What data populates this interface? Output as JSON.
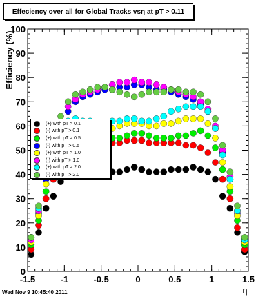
{
  "title": "Effeciency over all for Global Tracks vsη at pT > 0.11",
  "timestamp": "Wed Nov  9 10:45:40 2011",
  "chart_data": {
    "type": "scatter",
    "xlabel": "η",
    "ylabel": "Efficiency (%)",
    "xlim": [
      -1.5,
      1.5
    ],
    "ylim": [
      0,
      100
    ],
    "xticks": [
      "-1.5",
      "-1",
      "-0.5",
      "0",
      "0.5",
      "1",
      "1.5"
    ],
    "yticks": [
      "0",
      "10",
      "20",
      "30",
      "40",
      "50",
      "60",
      "70",
      "80",
      "90",
      "100"
    ],
    "grid": false,
    "legend_position": "middle-left",
    "series": [
      {
        "name": "(+) with pT > 0.1",
        "color": "#000000",
        "x": [
          -1.45,
          -1.35,
          -1.25,
          -1.15,
          -1.05,
          -0.95,
          -0.85,
          -0.75,
          -0.65,
          -0.55,
          -0.45,
          -0.35,
          -0.25,
          -0.15,
          -0.05,
          0.05,
          0.15,
          0.25,
          0.35,
          0.45,
          0.55,
          0.65,
          0.75,
          0.85,
          0.95,
          1.05,
          1.15,
          1.25,
          1.35,
          1.45
        ],
        "y": [
          7,
          16,
          26,
          31,
          37,
          41,
          42,
          42,
          41,
          41,
          40,
          41,
          41,
          42,
          43,
          42,
          41,
          41,
          41,
          42,
          42,
          42,
          43,
          42,
          41,
          38,
          31,
          26,
          16,
          8
        ]
      },
      {
        "name": "(-) with pT > 0.1",
        "color": "#ff0000",
        "x": [
          -1.45,
          -1.35,
          -1.25,
          -1.15,
          -1.05,
          -0.95,
          -0.85,
          -0.75,
          -0.65,
          -0.55,
          -0.45,
          -0.35,
          -0.25,
          -0.15,
          -0.05,
          0.05,
          0.15,
          0.25,
          0.35,
          0.45,
          0.55,
          0.65,
          0.75,
          0.85,
          0.95,
          1.05,
          1.15,
          1.25,
          1.35,
          1.45
        ],
        "y": [
          9,
          19,
          30,
          38,
          45,
          50,
          51,
          52,
          52,
          53,
          53,
          53,
          53,
          54,
          54,
          54,
          53,
          53,
          53,
          53,
          53,
          52,
          52,
          51,
          49,
          45,
          38,
          30,
          18,
          9
        ]
      },
      {
        "name": "(+) with pT > 0.5",
        "color": "#00ee00",
        "x": [
          -1.45,
          -1.35,
          -1.25,
          -1.15,
          -1.05,
          -0.95,
          -0.85,
          -0.75,
          -0.65,
          -0.55,
          -0.45,
          -0.35,
          -0.25,
          -0.15,
          -0.05,
          0.05,
          0.15,
          0.25,
          0.35,
          0.45,
          0.55,
          0.65,
          0.75,
          0.85,
          0.95,
          1.05,
          1.15,
          1.25,
          1.35,
          1.45
        ],
        "y": [
          11,
          21,
          33,
          42,
          50,
          53,
          54,
          54,
          53,
          54,
          55,
          55,
          55,
          56,
          57,
          57,
          56,
          55,
          55,
          55,
          56,
          56,
          57,
          58,
          56,
          51,
          42,
          33,
          21,
          11
        ]
      },
      {
        "name": "(-) with pT > 0.5",
        "color": "#0000ff",
        "x": [
          -1.45,
          -1.35,
          -1.25,
          -1.15,
          -1.05,
          -0.95,
          -0.85,
          -0.75,
          -0.65,
          -0.55,
          -0.45,
          -0.35,
          -0.25,
          -0.15,
          -0.05,
          0.05,
          0.15,
          0.25,
          0.35,
          0.45,
          0.55,
          0.65,
          0.75,
          0.85,
          0.95,
          1.05,
          1.15,
          1.25,
          1.35,
          1.45
        ],
        "y": [
          12,
          24,
          38,
          50,
          60,
          66,
          70,
          72,
          73,
          74,
          75,
          75,
          76,
          76,
          77,
          77,
          76,
          75,
          75,
          74,
          73,
          72,
          71,
          69,
          66,
          59,
          49,
          38,
          24,
          12
        ]
      },
      {
        "name": "(+) with pT > 1.0",
        "color": "#ffff00",
        "x": [
          -1.45,
          -1.35,
          -1.25,
          -1.15,
          -1.05,
          -0.95,
          -0.85,
          -0.75,
          -0.65,
          -0.55,
          -0.45,
          -0.35,
          -0.25,
          -0.15,
          -0.05,
          0.05,
          0.15,
          0.25,
          0.35,
          0.45,
          0.55,
          0.65,
          0.75,
          0.85,
          0.95,
          1.05,
          1.15,
          1.25,
          1.35,
          1.45
        ],
        "y": [
          12,
          23,
          36,
          46,
          55,
          59,
          60,
          60,
          60,
          60,
          59,
          59,
          60,
          61,
          61,
          61,
          60,
          60,
          61,
          61,
          62,
          63,
          63,
          63,
          61,
          55,
          45,
          35,
          23,
          12
        ]
      },
      {
        "name": "(-) with pT > 1.0",
        "color": "#ff00ff",
        "x": [
          -1.45,
          -1.35,
          -1.25,
          -1.15,
          -1.05,
          -0.95,
          -0.85,
          -0.75,
          -0.65,
          -0.55,
          -0.45,
          -0.35,
          -0.25,
          -0.15,
          -0.05,
          0.05,
          0.15,
          0.25,
          0.35,
          0.45,
          0.55,
          0.65,
          0.75,
          0.85,
          0.95,
          1.05,
          1.15,
          1.25,
          1.35,
          1.45
        ],
        "y": [
          13,
          25,
          40,
          52,
          62,
          68,
          71,
          73,
          74,
          75,
          76,
          77,
          78,
          78,
          79,
          78,
          78,
          77,
          76,
          75,
          74,
          73,
          72,
          70,
          67,
          60,
          50,
          39,
          25,
          13
        ]
      },
      {
        "name": "(+) with pT > 2.0",
        "color": "#00ffff",
        "x": [
          -1.45,
          -1.35,
          -1.25,
          -1.15,
          -1.05,
          -0.95,
          -0.85,
          -0.75,
          -0.65,
          -0.55,
          -0.45,
          -0.35,
          -0.25,
          -0.15,
          -0.05,
          0.05,
          0.15,
          0.25,
          0.35,
          0.45,
          0.55,
          0.65,
          0.75,
          0.85,
          0.95,
          1.05,
          1.15,
          1.25,
          1.35,
          1.45
        ],
        "y": [
          14,
          26,
          40,
          50,
          58,
          62,
          63,
          62,
          62,
          61,
          61,
          62,
          62,
          63,
          63,
          62,
          62,
          63,
          64,
          66,
          67,
          68,
          68,
          68,
          66,
          59,
          48,
          38,
          25,
          13
        ]
      },
      {
        "name": "(-) with pT > 2.0",
        "color": "#66cc44",
        "x": [
          -1.45,
          -1.35,
          -1.25,
          -1.15,
          -1.05,
          -0.95,
          -0.85,
          -0.75,
          -0.65,
          -0.55,
          -0.45,
          -0.35,
          -0.25,
          -0.15,
          -0.05,
          0.05,
          0.15,
          0.25,
          0.35,
          0.45,
          0.55,
          0.65,
          0.75,
          0.85,
          0.95,
          1.05,
          1.15,
          1.25,
          1.35,
          1.45
        ],
        "y": [
          14,
          27,
          42,
          55,
          64,
          70,
          73,
          74,
          75,
          76,
          76,
          75,
          74,
          73,
          72,
          73,
          74,
          74,
          74,
          75,
          75,
          74,
          74,
          73,
          70,
          63,
          52,
          41,
          27,
          14
        ]
      }
    ]
  }
}
